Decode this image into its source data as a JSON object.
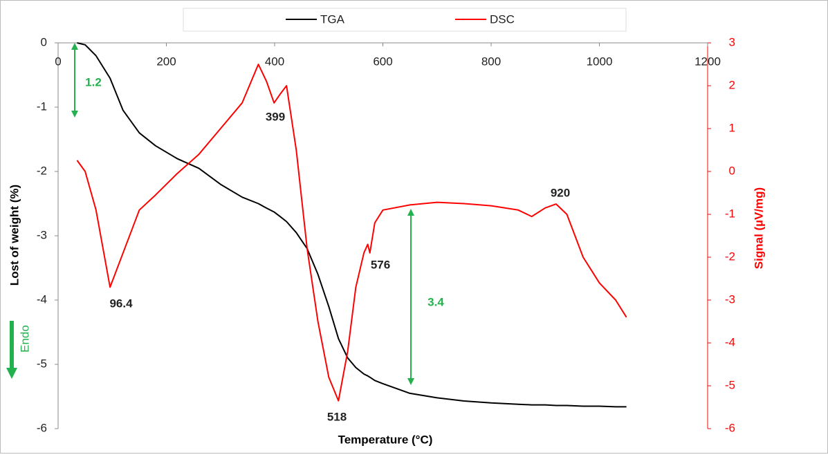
{
  "chart_data": {
    "type": "line",
    "x_label": "Temperature (°C)",
    "y_label": "Lost of weight (%)",
    "y2_label": "Signal (µV/mg)",
    "xlim": [
      0,
      1200
    ],
    "xticks": [
      0,
      200,
      400,
      600,
      800,
      1000,
      1200
    ],
    "ylim": [
      -6,
      0
    ],
    "yticks": [
      0,
      -1,
      -2,
      -3,
      -4,
      -5,
      -6
    ],
    "y2lim": [
      -6,
      3
    ],
    "y2ticks": [
      3,
      2,
      1,
      0,
      -1,
      -2,
      -3,
      -4,
      -5,
      -6
    ],
    "grid": false,
    "legend": "top",
    "x": [
      35,
      50,
      70,
      96,
      120,
      150,
      180,
      220,
      260,
      300,
      340,
      370,
      385,
      399,
      410,
      422,
      440,
      460,
      480,
      500,
      518,
      535,
      550,
      565,
      572,
      576,
      585,
      600,
      650,
      700,
      750,
      800,
      850,
      875,
      900,
      920,
      940,
      970,
      1000,
      1030,
      1050
    ],
    "series": [
      {
        "name": "TGA",
        "color": "#000000",
        "values": [
          0,
          -0.03,
          -0.2,
          -0.55,
          -1.05,
          -1.4,
          -1.6,
          -1.8,
          -1.95,
          -2.2,
          -2.4,
          -2.5,
          -2.57,
          -2.63,
          -2.7,
          -2.78,
          -2.95,
          -3.2,
          -3.6,
          -4.1,
          -4.6,
          -4.9,
          -5.05,
          -5.15,
          -5.18,
          -5.2,
          -5.25,
          -5.3,
          -5.45,
          -5.52,
          -5.57,
          -5.6,
          -5.62,
          -5.63,
          -5.63,
          -5.64,
          -5.64,
          -5.65,
          -5.65,
          -5.66,
          -5.66
        ]
      },
      {
        "name": "DSC",
        "color": "#ff0000",
        "axis": "y2",
        "values": [
          0.26,
          0,
          -0.9,
          -2.7,
          -1.9,
          -0.9,
          -0.55,
          -0.05,
          0.4,
          1.0,
          1.6,
          2.5,
          2.1,
          1.6,
          1.8,
          2.0,
          0.5,
          -1.8,
          -3.5,
          -4.8,
          -5.35,
          -4.2,
          -2.7,
          -1.9,
          -1.7,
          -1.9,
          -1.2,
          -0.9,
          -0.78,
          -0.72,
          -0.75,
          -0.8,
          -0.9,
          -1.05,
          -0.85,
          -0.76,
          -1.0,
          -2.0,
          -2.6,
          -3.0,
          -3.4
        ]
      }
    ],
    "annotations": [
      {
        "text": "96.4",
        "color": "#222222"
      },
      {
        "text": "399",
        "color": "#222222"
      },
      {
        "text": "518",
        "color": "#222222"
      },
      {
        "text": "576",
        "color": "#222222"
      },
      {
        "text": "920",
        "color": "#222222"
      },
      {
        "text": "1.2",
        "color": "#22b14c"
      },
      {
        "text": "3.4",
        "color": "#22b14c"
      },
      {
        "text": "Endo",
        "color": "#22b14c"
      }
    ]
  }
}
